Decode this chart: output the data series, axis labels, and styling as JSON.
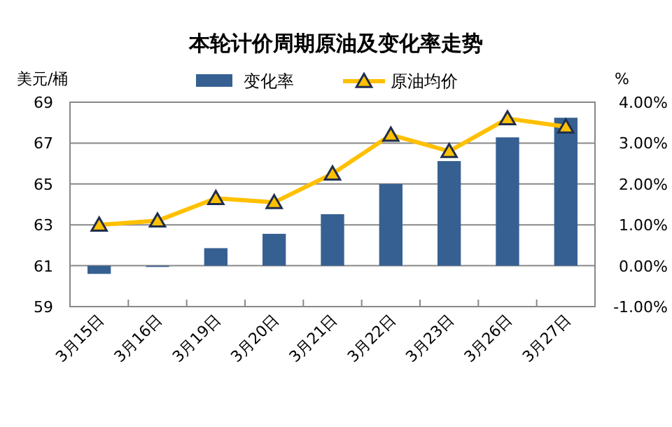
{
  "chart_data": {
    "type": "bar",
    "title": "本轮计价周期原油及变化率走势",
    "ylabel": "美元/桶",
    "y2label": "%",
    "categories": [
      "3月15日",
      "3月16日",
      "3月19日",
      "3月20日",
      "3月21日",
      "3月22日",
      "3月23日",
      "3月26日",
      "3月27日"
    ],
    "series": [
      {
        "name": "变化率",
        "axis": "y2",
        "color": "#376092",
        "values": [
          -0.2,
          -0.03,
          0.43,
          0.78,
          1.26,
          2.0,
          2.56,
          3.14,
          3.62
        ]
      },
      {
        "name": "原油均价",
        "type": "line",
        "axis": "y",
        "color": "#ffc000",
        "marker": "triangle",
        "values": [
          63.0,
          63.2,
          64.3,
          64.1,
          65.5,
          67.4,
          66.6,
          68.2,
          67.8
        ]
      }
    ],
    "ylim": [
      59,
      69
    ],
    "yticks": [
      59,
      61,
      63,
      65,
      67,
      69
    ],
    "y2lim": [
      -1,
      4
    ],
    "y2ticks": [
      {
        "value": -1,
        "label": "-1.00%"
      },
      {
        "value": 0,
        "label": "0.00%"
      },
      {
        "value": 1,
        "label": "1.00%"
      },
      {
        "value": 2,
        "label": "2.00%"
      },
      {
        "value": 3,
        "label": "3.00%"
      },
      {
        "value": 4,
        "label": "4.00%"
      }
    ],
    "grid": "y",
    "legend": "top"
  }
}
